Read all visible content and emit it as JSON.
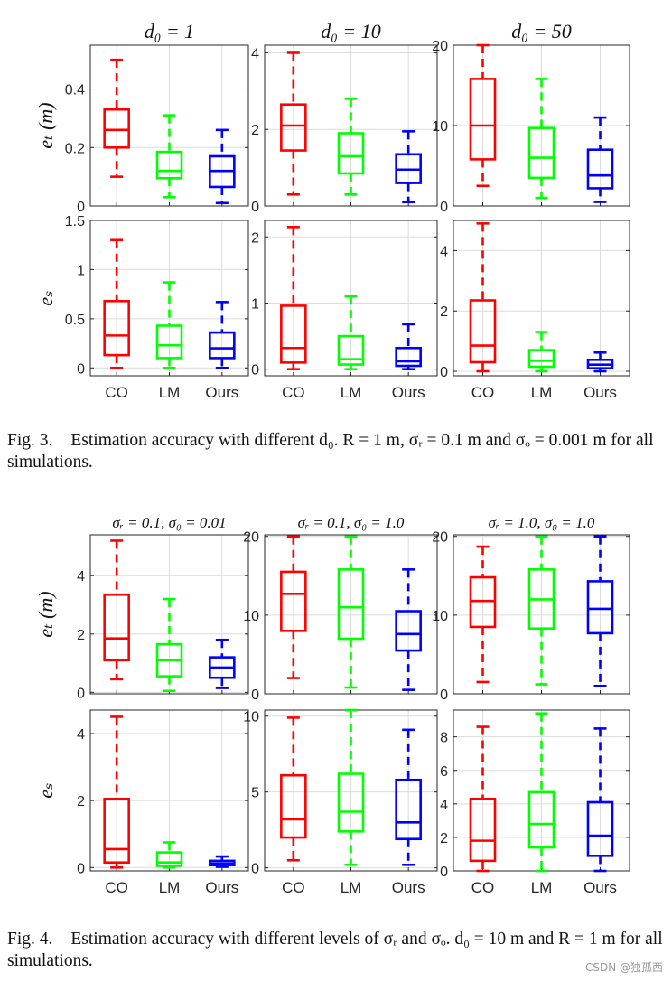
{
  "figures": [
    {
      "caption": {
        "label": "Fig. 3.",
        "text": "Estimation accuracy with different d₀. R = 1 m, σᵣ = 0.1 m and σₒ = 0.001 m for all simulations."
      }
    },
    {
      "caption": {
        "label": "Fig. 4.",
        "text": "Estimation accuracy with different levels of σᵣ and σₒ. d₀ = 10 m and R = 1 m for all simulations."
      }
    }
  ],
  "watermark": "CSDN @独孤西",
  "colors": {
    "CO": "#ff0000",
    "LM": "#00ff00",
    "Ours": "#0000ff"
  },
  "chart_data": [
    {
      "type": "box",
      "figure": 3,
      "row": "e_t",
      "col": 1,
      "title": "d₀ = 1",
      "ylabel": "eₜ (m)",
      "ylim": [
        0,
        0.55
      ],
      "grid": true,
      "yticks": [
        0,
        0.2,
        0.4
      ],
      "ytick_labels": [
        "0",
        "0.2",
        "0.4"
      ],
      "categories": [
        "CO",
        "LM",
        "Ours"
      ],
      "show_xticks": false,
      "boxes": [
        {
          "category": "CO",
          "whisker_low": 0.1,
          "q1": 0.2,
          "median": 0.26,
          "q3": 0.33,
          "whisker_high": 0.5
        },
        {
          "category": "LM",
          "whisker_low": 0.03,
          "q1": 0.095,
          "median": 0.12,
          "q3": 0.185,
          "whisker_high": 0.31
        },
        {
          "category": "Ours",
          "whisker_low": 0.01,
          "q1": 0.065,
          "median": 0.12,
          "q3": 0.17,
          "whisker_high": 0.26
        }
      ]
    },
    {
      "type": "box",
      "figure": 3,
      "row": "e_t",
      "col": 2,
      "title": "d₀ = 10",
      "ylabel": "",
      "ylim": [
        0,
        4.2
      ],
      "grid": true,
      "yticks": [
        0,
        2,
        4
      ],
      "ytick_labels": [
        "0",
        "2",
        "4"
      ],
      "categories": [
        "CO",
        "LM",
        "Ours"
      ],
      "show_xticks": false,
      "boxes": [
        {
          "category": "CO",
          "whisker_low": 0.3,
          "q1": 1.45,
          "median": 2.1,
          "q3": 2.65,
          "whisker_high": 4.0
        },
        {
          "category": "LM",
          "whisker_low": 0.3,
          "q1": 0.85,
          "median": 1.3,
          "q3": 1.9,
          "whisker_high": 2.8
        },
        {
          "category": "Ours",
          "whisker_low": 0.1,
          "q1": 0.6,
          "median": 0.95,
          "q3": 1.35,
          "whisker_high": 1.95
        }
      ]
    },
    {
      "type": "box",
      "figure": 3,
      "row": "e_t",
      "col": 3,
      "title": "d₀ = 50",
      "ylabel": "",
      "ylim": [
        0,
        20
      ],
      "grid": true,
      "yticks": [
        0,
        10,
        20
      ],
      "ytick_labels": [
        "0",
        "10",
        "20"
      ],
      "categories": [
        "CO",
        "LM",
        "Ours"
      ],
      "show_xticks": false,
      "boxes": [
        {
          "category": "CO",
          "whisker_low": 2.5,
          "q1": 5.8,
          "median": 10.0,
          "q3": 15.8,
          "whisker_high": 20.0
        },
        {
          "category": "LM",
          "whisker_low": 1.0,
          "q1": 3.5,
          "median": 6.0,
          "q3": 9.7,
          "whisker_high": 15.8
        },
        {
          "category": "Ours",
          "whisker_low": 0.5,
          "q1": 2.2,
          "median": 3.8,
          "q3": 7.0,
          "whisker_high": 11.0
        }
      ]
    },
    {
      "type": "box",
      "figure": 3,
      "row": "e_s",
      "col": 1,
      "title": "",
      "ylabel": "eₛ",
      "ylim": [
        -0.08,
        1.5
      ],
      "grid": true,
      "yticks": [
        0,
        0.5,
        1,
        1.5
      ],
      "ytick_labels": [
        "0",
        "0.5",
        "1",
        "1.5"
      ],
      "categories": [
        "CO",
        "LM",
        "Ours"
      ],
      "show_xticks": true,
      "boxes": [
        {
          "category": "CO",
          "whisker_low": 0.0,
          "q1": 0.13,
          "median": 0.33,
          "q3": 0.68,
          "whisker_high": 1.3
        },
        {
          "category": "LM",
          "whisker_low": 0.0,
          "q1": 0.1,
          "median": 0.23,
          "q3": 0.43,
          "whisker_high": 0.87
        },
        {
          "category": "Ours",
          "whisker_low": 0.0,
          "q1": 0.1,
          "median": 0.2,
          "q3": 0.36,
          "whisker_high": 0.67
        }
      ]
    },
    {
      "type": "box",
      "figure": 3,
      "row": "e_s",
      "col": 2,
      "title": "",
      "ylabel": "",
      "ylim": [
        -0.1,
        2.25
      ],
      "grid": true,
      "yticks": [
        0,
        1,
        2
      ],
      "ytick_labels": [
        "0",
        "1",
        "2"
      ],
      "categories": [
        "CO",
        "LM",
        "Ours"
      ],
      "show_xticks": true,
      "boxes": [
        {
          "category": "CO",
          "whisker_low": 0.0,
          "q1": 0.1,
          "median": 0.32,
          "q3": 0.96,
          "whisker_high": 2.15
        },
        {
          "category": "LM",
          "whisker_low": 0.0,
          "q1": 0.07,
          "median": 0.15,
          "q3": 0.5,
          "whisker_high": 1.1
        },
        {
          "category": "Ours",
          "whisker_low": 0.0,
          "q1": 0.05,
          "median": 0.12,
          "q3": 0.32,
          "whisker_high": 0.68
        }
      ]
    },
    {
      "type": "box",
      "figure": 3,
      "row": "e_s",
      "col": 3,
      "title": "",
      "ylabel": "",
      "ylim": [
        -0.15,
        5.0
      ],
      "grid": true,
      "yticks": [
        0,
        2,
        4
      ],
      "ytick_labels": [
        "0",
        "2",
        "4"
      ],
      "categories": [
        "CO",
        "LM",
        "Ours"
      ],
      "show_xticks": true,
      "boxes": [
        {
          "category": "CO",
          "whisker_low": 0.0,
          "q1": 0.3,
          "median": 0.85,
          "q3": 2.35,
          "whisker_high": 4.9
        },
        {
          "category": "LM",
          "whisker_low": 0.0,
          "q1": 0.15,
          "median": 0.35,
          "q3": 0.7,
          "whisker_high": 1.3
        },
        {
          "category": "Ours",
          "whisker_low": 0.0,
          "q1": 0.1,
          "median": 0.22,
          "q3": 0.38,
          "whisker_high": 0.62
        }
      ]
    },
    {
      "type": "box",
      "figure": 4,
      "row": "e_t",
      "col": 1,
      "title": "σᵣ = 0.1,  σ₀ = 0.01",
      "ylabel": "eₜ (m)",
      "ylim": [
        -0.05,
        5.4
      ],
      "grid": true,
      "yticks": [
        0,
        2,
        4
      ],
      "ytick_labels": [
        "0",
        "2",
        "4"
      ],
      "categories": [
        "CO",
        "LM",
        "Ours"
      ],
      "show_xticks": false,
      "boxes": [
        {
          "category": "CO",
          "whisker_low": 0.45,
          "q1": 1.1,
          "median": 1.85,
          "q3": 3.35,
          "whisker_high": 5.2
        },
        {
          "category": "LM",
          "whisker_low": 0.05,
          "q1": 0.55,
          "median": 1.1,
          "q3": 1.65,
          "whisker_high": 3.2
        },
        {
          "category": "Ours",
          "whisker_low": 0.15,
          "q1": 0.5,
          "median": 0.85,
          "q3": 1.2,
          "whisker_high": 1.8
        }
      ]
    },
    {
      "type": "box",
      "figure": 4,
      "row": "e_t",
      "col": 2,
      "title": "σᵣ = 0.1,  σ₀ = 1.0",
      "ylabel": "",
      "ylim": [
        0,
        20.2
      ],
      "grid": true,
      "yticks": [
        0,
        10,
        20
      ],
      "ytick_labels": [
        "0",
        "10",
        "20"
      ],
      "categories": [
        "CO",
        "LM",
        "Ours"
      ],
      "show_xticks": false,
      "boxes": [
        {
          "category": "CO",
          "whisker_low": 2.0,
          "q1": 8.0,
          "median": 12.7,
          "q3": 15.5,
          "whisker_high": 20.0
        },
        {
          "category": "LM",
          "whisker_low": 0.8,
          "q1": 7.0,
          "median": 11.0,
          "q3": 15.8,
          "whisker_high": 20.0
        },
        {
          "category": "Ours",
          "whisker_low": 0.5,
          "q1": 5.5,
          "median": 7.6,
          "q3": 10.5,
          "whisker_high": 15.8
        }
      ]
    },
    {
      "type": "box",
      "figure": 4,
      "row": "e_t",
      "col": 3,
      "title": "σᵣ = 1.0,  σ₀ = 1.0",
      "ylabel": "",
      "ylim": [
        0,
        20.2
      ],
      "grid": true,
      "yticks": [
        0,
        10,
        20
      ],
      "ytick_labels": [
        "0",
        "10",
        "20"
      ],
      "categories": [
        "CO",
        "LM",
        "Ours"
      ],
      "show_xticks": false,
      "boxes": [
        {
          "category": "CO",
          "whisker_low": 1.5,
          "q1": 8.5,
          "median": 11.8,
          "q3": 14.8,
          "whisker_high": 18.7
        },
        {
          "category": "LM",
          "whisker_low": 1.2,
          "q1": 8.3,
          "median": 12.0,
          "q3": 15.8,
          "whisker_high": 20.0
        },
        {
          "category": "Ours",
          "whisker_low": 1.0,
          "q1": 7.7,
          "median": 10.8,
          "q3": 14.3,
          "whisker_high": 20.0
        }
      ]
    },
    {
      "type": "box",
      "figure": 4,
      "row": "e_s",
      "col": 1,
      "title": "",
      "ylabel": "eₛ",
      "ylim": [
        -0.1,
        4.7
      ],
      "grid": true,
      "yticks": [
        0,
        2,
        4
      ],
      "ytick_labels": [
        "0",
        "2",
        "4"
      ],
      "categories": [
        "CO",
        "LM",
        "Ours"
      ],
      "show_xticks": true,
      "boxes": [
        {
          "category": "CO",
          "whisker_low": 0.0,
          "q1": 0.15,
          "median": 0.55,
          "q3": 2.05,
          "whisker_high": 4.5
        },
        {
          "category": "LM",
          "whisker_low": 0.0,
          "q1": 0.05,
          "median": 0.15,
          "q3": 0.45,
          "whisker_high": 0.75
        },
        {
          "category": "Ours",
          "whisker_low": 0.02,
          "q1": 0.07,
          "median": 0.12,
          "q3": 0.2,
          "whisker_high": 0.33
        }
      ]
    },
    {
      "type": "box",
      "figure": 4,
      "row": "e_s",
      "col": 2,
      "title": "",
      "ylabel": "",
      "ylim": [
        -0.2,
        10.4
      ],
      "grid": true,
      "yticks": [
        0,
        5,
        10
      ],
      "ytick_labels": [
        "0",
        "5",
        "10"
      ],
      "categories": [
        "CO",
        "LM",
        "Ours"
      ],
      "show_xticks": true,
      "boxes": [
        {
          "category": "CO",
          "whisker_low": 0.5,
          "q1": 2.0,
          "median": 3.2,
          "q3": 6.1,
          "whisker_high": 9.9
        },
        {
          "category": "LM",
          "whisker_low": 0.2,
          "q1": 2.4,
          "median": 3.7,
          "q3": 6.2,
          "whisker_high": 10.4
        },
        {
          "category": "Ours",
          "whisker_low": 0.2,
          "q1": 1.9,
          "median": 3.0,
          "q3": 5.8,
          "whisker_high": 9.1
        }
      ]
    },
    {
      "type": "box",
      "figure": 4,
      "row": "e_s",
      "col": 3,
      "title": "",
      "ylabel": "",
      "ylim": [
        0,
        9.6
      ],
      "grid": true,
      "yticks": [
        0,
        2,
        4,
        6,
        8
      ],
      "ytick_labels": [
        "0",
        "2",
        "4",
        "6",
        "8"
      ],
      "categories": [
        "CO",
        "LM",
        "Ours"
      ],
      "show_xticks": true,
      "boxes": [
        {
          "category": "CO",
          "whisker_low": 0.0,
          "q1": 0.6,
          "median": 1.8,
          "q3": 4.3,
          "whisker_high": 8.6
        },
        {
          "category": "LM",
          "whisker_low": 0.0,
          "q1": 1.4,
          "median": 2.8,
          "q3": 4.7,
          "whisker_high": 9.4
        },
        {
          "category": "Ours",
          "whisker_low": 0.0,
          "q1": 0.9,
          "median": 2.1,
          "q3": 4.1,
          "whisker_high": 8.5
        }
      ]
    }
  ]
}
